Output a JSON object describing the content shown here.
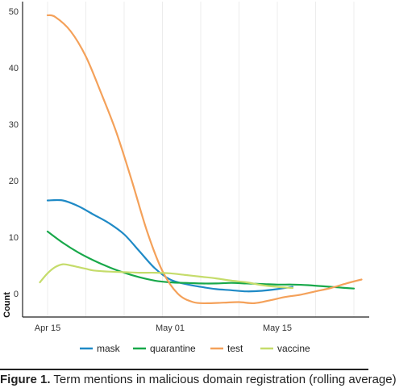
{
  "chart_data": {
    "type": "line",
    "ylabel": "Count",
    "xlabel": "",
    "ylim": [
      0,
      50
    ],
    "yticks": [
      0,
      10,
      20,
      30,
      40,
      50
    ],
    "xlim": [
      "2020-04-15",
      "2020-05-28"
    ],
    "xticks": [
      {
        "date": "2020-04-15",
        "label": "Apr 15"
      },
      {
        "date": "2020-05-01",
        "label": "May 01"
      },
      {
        "date": "2020-05-15",
        "label": "May 15"
      }
    ],
    "grid": "vertical",
    "legend_position": "bottom",
    "series": [
      {
        "name": "mask",
        "color": "#1f8ac6",
        "points": [
          [
            "2020-04-15",
            16.5
          ],
          [
            "2020-04-17",
            16.5
          ],
          [
            "2020-04-19",
            15.5
          ],
          [
            "2020-04-21",
            14.0
          ],
          [
            "2020-04-23",
            12.5
          ],
          [
            "2020-04-25",
            10.5
          ],
          [
            "2020-04-27",
            7.5
          ],
          [
            "2020-04-29",
            4.5
          ],
          [
            "2020-05-01",
            2.5
          ],
          [
            "2020-05-03",
            1.7
          ],
          [
            "2020-05-05",
            1.2
          ],
          [
            "2020-05-07",
            0.8
          ],
          [
            "2020-05-09",
            0.6
          ],
          [
            "2020-05-11",
            0.4
          ],
          [
            "2020-05-13",
            0.5
          ],
          [
            "2020-05-15",
            0.8
          ],
          [
            "2020-05-17",
            1.2
          ]
        ]
      },
      {
        "name": "quarantine",
        "color": "#18a84a",
        "points": [
          [
            "2020-04-15",
            11.0
          ],
          [
            "2020-04-17",
            9.0
          ],
          [
            "2020-04-19",
            7.3
          ],
          [
            "2020-04-21",
            5.9
          ],
          [
            "2020-04-23",
            4.7
          ],
          [
            "2020-04-25",
            3.7
          ],
          [
            "2020-04-27",
            2.9
          ],
          [
            "2020-04-29",
            2.3
          ],
          [
            "2020-05-01",
            2.0
          ],
          [
            "2020-05-03",
            1.9
          ],
          [
            "2020-05-05",
            1.8
          ],
          [
            "2020-05-07",
            1.8
          ],
          [
            "2020-05-09",
            1.9
          ],
          [
            "2020-05-11",
            1.8
          ],
          [
            "2020-05-13",
            1.7
          ],
          [
            "2020-05-15",
            1.6
          ],
          [
            "2020-05-17",
            1.6
          ],
          [
            "2020-05-19",
            1.5
          ],
          [
            "2020-05-21",
            1.3
          ],
          [
            "2020-05-23",
            1.1
          ],
          [
            "2020-05-25",
            0.9
          ]
        ]
      },
      {
        "name": "test",
        "color": "#f4a15a",
        "points": [
          [
            "2020-04-15",
            49.3
          ],
          [
            "2020-04-16",
            49.0
          ],
          [
            "2020-04-18",
            46.5
          ],
          [
            "2020-04-20",
            42.0
          ],
          [
            "2020-04-22",
            35.5
          ],
          [
            "2020-04-24",
            28.5
          ],
          [
            "2020-04-26",
            20.0
          ],
          [
            "2020-04-28",
            11.0
          ],
          [
            "2020-04-30",
            4.0
          ],
          [
            "2020-05-02",
            0.0
          ],
          [
            "2020-05-04",
            -1.5
          ],
          [
            "2020-05-06",
            -1.7
          ],
          [
            "2020-05-08",
            -1.6
          ],
          [
            "2020-05-10",
            -1.5
          ],
          [
            "2020-05-12",
            -1.7
          ],
          [
            "2020-05-14",
            -1.2
          ],
          [
            "2020-05-16",
            -0.6
          ],
          [
            "2020-05-18",
            -0.2
          ],
          [
            "2020-05-20",
            0.4
          ],
          [
            "2020-05-22",
            1.0
          ],
          [
            "2020-05-24",
            1.8
          ],
          [
            "2020-05-26",
            2.5
          ]
        ]
      },
      {
        "name": "vaccine",
        "color": "#c5dc6b",
        "points": [
          [
            "2020-04-14",
            2.0
          ],
          [
            "2020-04-15",
            3.6
          ],
          [
            "2020-04-16",
            4.7
          ],
          [
            "2020-04-17",
            5.2
          ],
          [
            "2020-04-18",
            5.0
          ],
          [
            "2020-04-19",
            4.7
          ],
          [
            "2020-04-20",
            4.4
          ],
          [
            "2020-04-21",
            4.1
          ],
          [
            "2020-04-23",
            3.9
          ],
          [
            "2020-04-25",
            3.8
          ],
          [
            "2020-04-27",
            3.7
          ],
          [
            "2020-04-29",
            3.7
          ],
          [
            "2020-05-01",
            3.6
          ],
          [
            "2020-05-03",
            3.3
          ],
          [
            "2020-05-05",
            3.0
          ],
          [
            "2020-05-07",
            2.7
          ],
          [
            "2020-05-09",
            2.3
          ],
          [
            "2020-05-11",
            2.0
          ],
          [
            "2020-05-13",
            1.5
          ],
          [
            "2020-05-15",
            1.2
          ],
          [
            "2020-05-17",
            1.0
          ]
        ]
      }
    ]
  },
  "caption": {
    "label": "Figure 1.",
    "text": " Term mentions in malicious domain registration (rolling average)"
  }
}
